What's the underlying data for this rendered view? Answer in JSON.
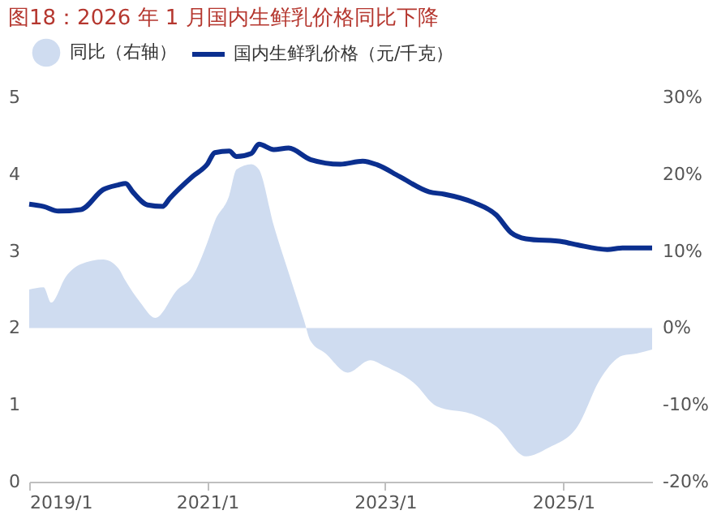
{
  "chart_data": {
    "type": "line",
    "title": "图18：2026 年 1 月国内生鲜乳价格同比下降",
    "xlim": [
      "2019-01",
      "2026-01"
    ],
    "xticks": [
      {
        "value": "2019-01",
        "label": "2019/1"
      },
      {
        "value": "2021-01",
        "label": "2021/1"
      },
      {
        "value": "2023-01",
        "label": "2023/1"
      },
      {
        "value": "2025-01",
        "label": "2025/1"
      }
    ],
    "ylim": [
      0,
      5
    ],
    "yticks": [
      0,
      1,
      2,
      3,
      4,
      5
    ],
    "y2lim": [
      -20,
      30
    ],
    "y2ticks": [
      {
        "value": -20,
        "label": "-20%"
      },
      {
        "value": -10,
        "label": "-10%"
      },
      {
        "value": 0,
        "label": "0%"
      },
      {
        "value": 10,
        "label": "10%"
      },
      {
        "value": 20,
        "label": "20%"
      },
      {
        "value": 30,
        "label": "30%"
      }
    ],
    "grid": false,
    "legend": "top",
    "series": [
      {
        "name": "同比（右轴）",
        "type": "area",
        "axis": "y2",
        "color": "#cfdcf0",
        "x": [
          "2019-01",
          "2019-03",
          "2019-04",
          "2019-06",
          "2019-08",
          "2019-11",
          "2020-01",
          "2020-02",
          "2020-04",
          "2020-06",
          "2020-09",
          "2020-11",
          "2021-01",
          "2021-02",
          "2021-04",
          "2021-05",
          "2021-07",
          "2021-08",
          "2021-10",
          "2021-12",
          "2022-02",
          "2022-03",
          "2022-05",
          "2022-08",
          "2022-11",
          "2023-01",
          "2023-05",
          "2023-08",
          "2024-01",
          "2024-04",
          "2024-08",
          "2024-11",
          "2025-03",
          "2025-06",
          "2025-09",
          "2025-11",
          "2026-01"
        ],
        "values": [
          5.0,
          5.3,
          3.3,
          6.7,
          8.3,
          8.9,
          7.8,
          6.1,
          3.3,
          1.3,
          5.0,
          6.7,
          11.1,
          13.9,
          17.2,
          20.6,
          21.3,
          20.6,
          13.3,
          7.2,
          1.1,
          -1.7,
          -3.3,
          -5.8,
          -4.2,
          -5.0,
          -7.2,
          -10.2,
          -11.3,
          -12.8,
          -16.7,
          -15.6,
          -12.8,
          -6.7,
          -3.6,
          -3.3,
          -2.8
        ]
      },
      {
        "name": "国内生鲜乳价格（元/千克）",
        "axis": "y",
        "color": "#0b2f8f",
        "x": [
          "2019-01",
          "2019-03",
          "2019-05",
          "2019-08",
          "2019-11",
          "2020-01",
          "2020-02",
          "2020-03",
          "2020-05",
          "2020-07",
          "2020-08",
          "2020-11",
          "2021-01",
          "2021-02",
          "2021-04",
          "2021-05",
          "2021-07",
          "2021-08",
          "2021-10",
          "2021-12",
          "2022-03",
          "2022-07",
          "2022-10",
          "2022-12",
          "2023-03",
          "2023-07",
          "2023-09",
          "2024-01",
          "2024-04",
          "2024-06",
          "2024-08",
          "2025-01",
          "2025-03",
          "2025-07",
          "2025-09",
          "2026-01"
        ],
        "values": [
          3.61,
          3.58,
          3.52,
          3.54,
          3.8,
          3.86,
          3.88,
          3.77,
          3.6,
          3.58,
          3.69,
          3.97,
          4.13,
          4.28,
          4.3,
          4.23,
          4.27,
          4.39,
          4.32,
          4.34,
          4.19,
          4.13,
          4.17,
          4.12,
          3.97,
          3.77,
          3.74,
          3.63,
          3.47,
          3.24,
          3.16,
          3.12,
          3.08,
          3.02,
          3.04,
          3.04
        ]
      }
    ]
  }
}
